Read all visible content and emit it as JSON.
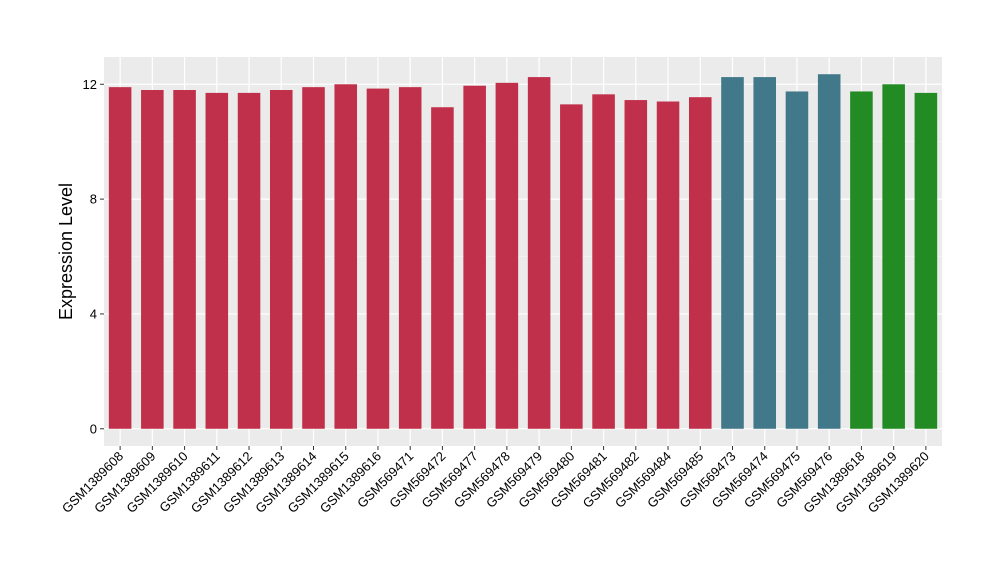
{
  "chart_data": {
    "type": "bar",
    "title": "",
    "xlabel": "",
    "ylabel": "Expression Level",
    "ylim": [
      0,
      12.5
    ],
    "yticks": [
      0,
      4,
      8,
      12
    ],
    "grid": true,
    "legend": "none",
    "colors": {
      "panel_background": "#ebebeb",
      "grid_major": "#ffffff",
      "grid_minor": "#f5f5f5",
      "axis_text": "#000000",
      "tick_mark": "#333333"
    },
    "categories": [
      "GSM1389608",
      "GSM1389609",
      "GSM1389610",
      "GSM1389611",
      "GSM1389612",
      "GSM1389613",
      "GSM1389614",
      "GSM1389615",
      "GSM1389616",
      "GSM569471",
      "GSM569472",
      "GSM569477",
      "GSM569478",
      "GSM569479",
      "GSM569480",
      "GSM569481",
      "GSM569482",
      "GSM569484",
      "GSM569485",
      "GSM569473",
      "GSM569474",
      "GSM569475",
      "GSM569476",
      "GSM1389618",
      "GSM1389619",
      "GSM1389620"
    ],
    "values": [
      11.9,
      11.8,
      11.8,
      11.7,
      11.7,
      11.8,
      11.9,
      12.0,
      11.85,
      11.9,
      11.2,
      11.95,
      12.05,
      12.25,
      11.3,
      11.65,
      11.45,
      11.4,
      11.55,
      12.25,
      12.25,
      11.75,
      12.35,
      11.75,
      12.0,
      11.7
    ],
    "bar_colors": [
      "#c1304a",
      "#c1304a",
      "#c1304a",
      "#c1304a",
      "#c1304a",
      "#c1304a",
      "#c1304a",
      "#c1304a",
      "#c1304a",
      "#c1304a",
      "#c1304a",
      "#c1304a",
      "#c1304a",
      "#c1304a",
      "#c1304a",
      "#c1304a",
      "#c1304a",
      "#c1304a",
      "#c1304a",
      "#41788a",
      "#41788a",
      "#41788a",
      "#41788a",
      "#238b23",
      "#238b23",
      "#238b23"
    ]
  }
}
